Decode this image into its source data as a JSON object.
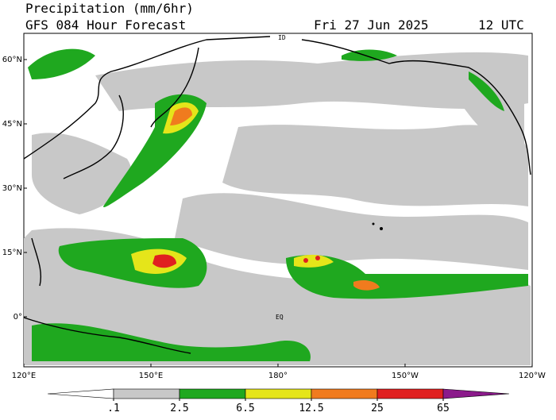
{
  "header": {
    "title": "Precipitation (mm/6hr)",
    "model": "GFS 084 Hour Forecast",
    "date": "Fri 27 Jun 2025",
    "time": "12 UTC"
  },
  "map": {
    "lat_labels": [
      {
        "value": 60,
        "label": "60°N"
      },
      {
        "value": 45,
        "label": "45°N"
      },
      {
        "value": 30,
        "label": "30°N"
      },
      {
        "value": 15,
        "label": "15°N"
      },
      {
        "value": 0,
        "label": "0°"
      }
    ],
    "lon_labels": [
      {
        "value": 120,
        "label": "120°E"
      },
      {
        "value": 150,
        "label": "150°E"
      },
      {
        "value": 180,
        "label": "180°"
      },
      {
        "value": 210,
        "label": "150°W"
      },
      {
        "value": 240,
        "label": "120°W"
      }
    ],
    "line_labels": [
      "ID",
      "EQ"
    ]
  },
  "colorbar": {
    "ticks": [
      {
        "value": 0.1,
        "label": ".1"
      },
      2.5,
      6.5,
      12.5,
      25,
      65
    ],
    "colors": [
      "#ffffff",
      "#c8c8c8",
      "#1fa81f",
      "#e5e51a",
      "#f07b1e",
      "#e02020",
      "#8b1a8b"
    ]
  }
}
